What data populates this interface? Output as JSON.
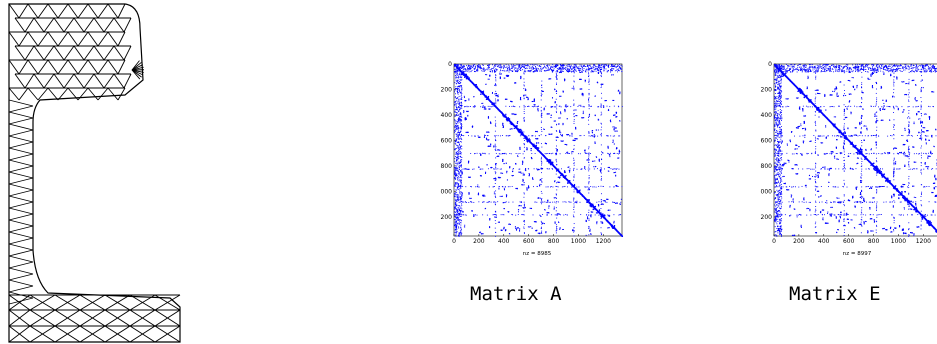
{
  "mesh": {
    "stroke_color": "#000000",
    "icon": "triangulated-rail-cross-section-mesh"
  },
  "matrices": [
    {
      "id": "a",
      "caption": "Matrix A",
      "nz_label": "nz = 8985",
      "size": 1350,
      "x_ticks": [
        "0",
        "200",
        "400",
        "600",
        "800",
        "1000",
        "1200"
      ],
      "y_ticks": [
        "0",
        "200",
        "400",
        "600",
        "800",
        "1000",
        "1200"
      ],
      "dot_color": "#0000ff"
    },
    {
      "id": "e",
      "caption": "Matrix E",
      "nz_label": "nz = 8997",
      "size": 1350,
      "x_ticks": [
        "0",
        "200",
        "400",
        "600",
        "800",
        "1000",
        "1200"
      ],
      "y_ticks": [
        "0",
        "200",
        "400",
        "600",
        "800",
        "1000",
        "1200"
      ],
      "dot_color": "#0000ff"
    }
  ]
}
